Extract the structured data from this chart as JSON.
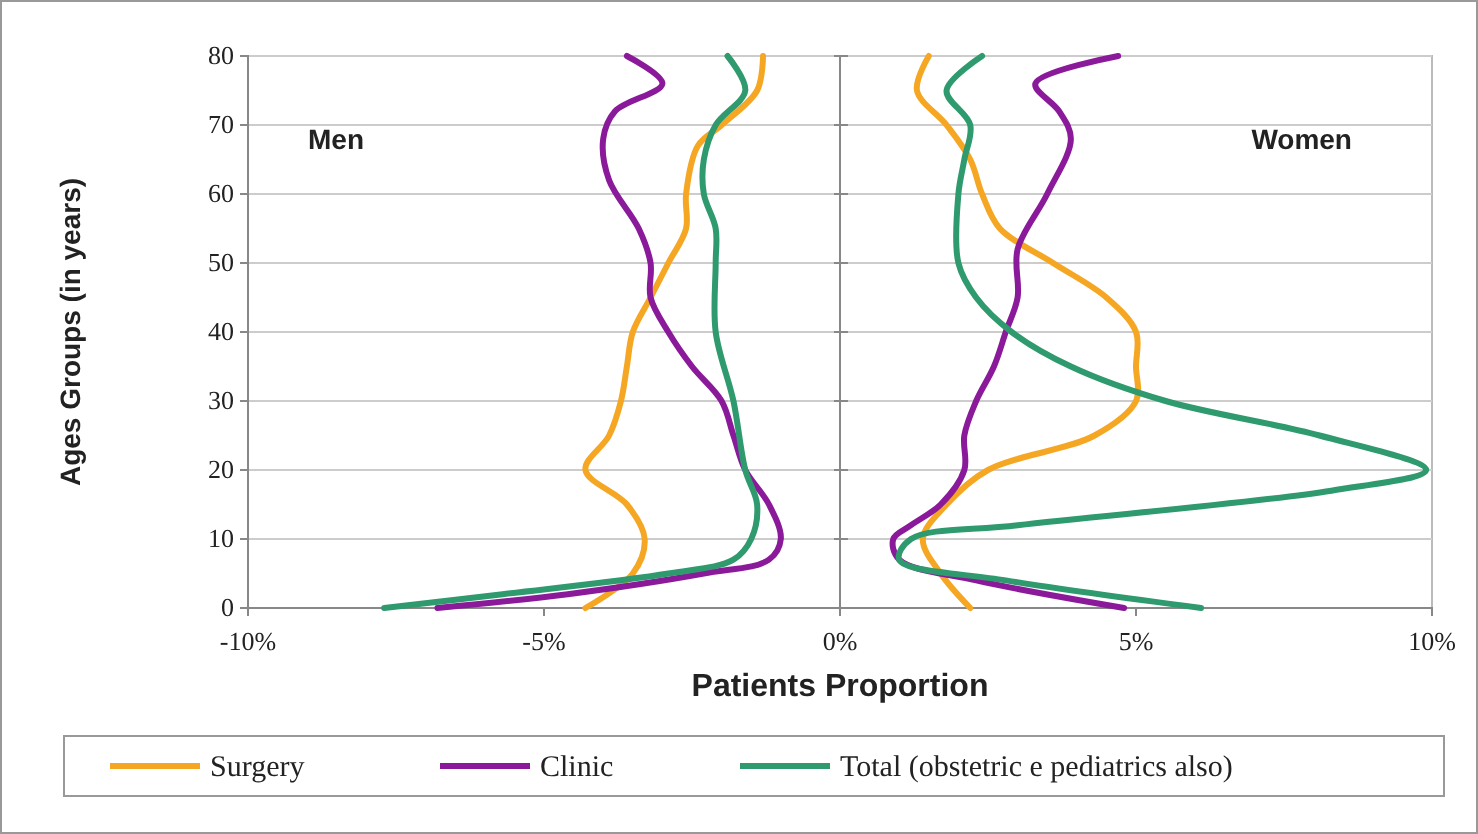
{
  "chart_data": {
    "type": "line",
    "xlabel": "Patients Proportion",
    "ylabel": "Ages Groups (in years)",
    "xlim": [
      -10,
      10
    ],
    "xticks": [
      {
        "value": -10,
        "label": "-10%"
      },
      {
        "value": -5,
        "label": "-5%"
      },
      {
        "value": 0,
        "label": "0%"
      },
      {
        "value": 5,
        "label": "5%"
      },
      {
        "value": 10,
        "label": "10%"
      }
    ],
    "ylim": [
      0,
      80
    ],
    "yticks": [
      0,
      10,
      20,
      30,
      40,
      50,
      60,
      70,
      80
    ],
    "grid": "y",
    "legend": "bottom",
    "annotations": [
      "Men",
      "Women"
    ],
    "series": [
      {
        "name": "Surgery",
        "color": "#f5a623",
        "x": [
          -1.3,
          -1.4,
          -2.0,
          -2.4,
          -2.6,
          -2.6,
          -2.9,
          -3.2,
          -3.5,
          -3.6,
          -3.7,
          -3.9,
          -4.3,
          -3.6,
          -3.3,
          -3.5,
          -4.3,
          null,
          1.5,
          1.3,
          1.8,
          2.2,
          2.4,
          2.7,
          3.6,
          4.5,
          5.0,
          5.0,
          5.0,
          4.3,
          2.5,
          1.8,
          1.4,
          1.7,
          2.2
        ],
        "values": [
          80,
          75,
          70,
          67,
          60,
          55,
          50,
          45,
          40,
          35,
          30,
          25,
          20,
          15,
          10,
          5,
          0,
          null,
          80,
          75,
          70,
          65,
          60,
          55,
          50,
          45,
          40,
          35,
          30,
          25,
          20,
          15,
          10,
          5,
          0
        ]
      },
      {
        "name": "Clinic",
        "color": "#8b1a9b",
        "x": [
          -3.6,
          -3.0,
          -3.8,
          -4.0,
          -3.9,
          -3.4,
          -3.2,
          -3.2,
          -2.9,
          -2.5,
          -2.0,
          -1.8,
          -1.6,
          -1.2,
          -1.0,
          -1.2,
          -2.3,
          -4.6,
          -6.8,
          null,
          4.7,
          3.3,
          3.7,
          3.9,
          3.5,
          3.0,
          3.0,
          2.8,
          2.6,
          2.3,
          2.1,
          2.1,
          1.7,
          1.2,
          0.9,
          1.0,
          2.3,
          4.8
        ],
        "values": [
          80,
          76,
          72,
          68,
          62,
          55,
          50,
          45,
          40,
          35,
          30,
          25,
          20,
          15,
          10,
          7,
          5,
          2,
          0,
          null,
          80,
          76,
          72,
          68,
          60,
          52,
          45,
          40,
          35,
          30,
          25,
          20,
          15,
          12,
          10,
          7,
          4,
          0
        ]
      },
      {
        "name": "Total (obstetric e pediatrics also)",
        "color": "#2e9a6e",
        "x": [
          -1.9,
          -1.6,
          -2.1,
          -2.3,
          -2.3,
          -2.1,
          -2.1,
          -2.1,
          -1.8,
          -1.6,
          -1.4,
          -1.5,
          -1.8,
          -2.9,
          -5.7,
          -7.7,
          null,
          2.4,
          1.8,
          2.2,
          2.1,
          2.0,
          2.0,
          2.3,
          2.9,
          3.9,
          5.5,
          8.1,
          9.9,
          8.3,
          3.0,
          1.2,
          1.0,
          2.8,
          6.1
        ],
        "values": [
          80,
          75,
          70,
          65,
          60,
          55,
          50,
          40,
          30,
          20,
          15,
          10,
          7,
          5,
          2,
          0,
          null,
          80,
          75,
          70,
          65,
          60,
          50,
          45,
          40,
          35,
          30,
          25,
          20,
          17,
          12,
          10,
          7,
          4,
          0
        ]
      }
    ]
  }
}
